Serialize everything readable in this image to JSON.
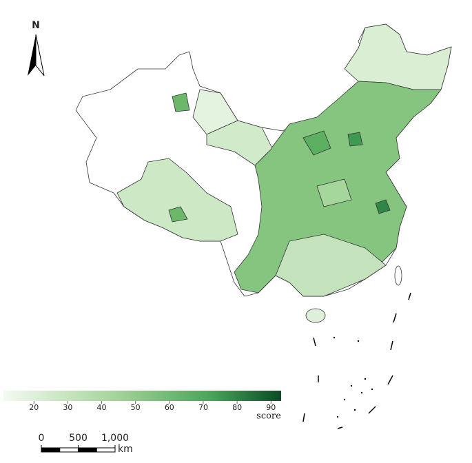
{
  "north_label": "N",
  "legend": {
    "label": "score",
    "range": [
      11,
      93
    ],
    "ticks": [
      20,
      30,
      40,
      50,
      60,
      70,
      80,
      90
    ]
  },
  "scale_bar": {
    "ticks": [
      0,
      500,
      {
        "value": 1000,
        "label": "1,000"
      }
    ],
    "unit": "km"
  }
}
